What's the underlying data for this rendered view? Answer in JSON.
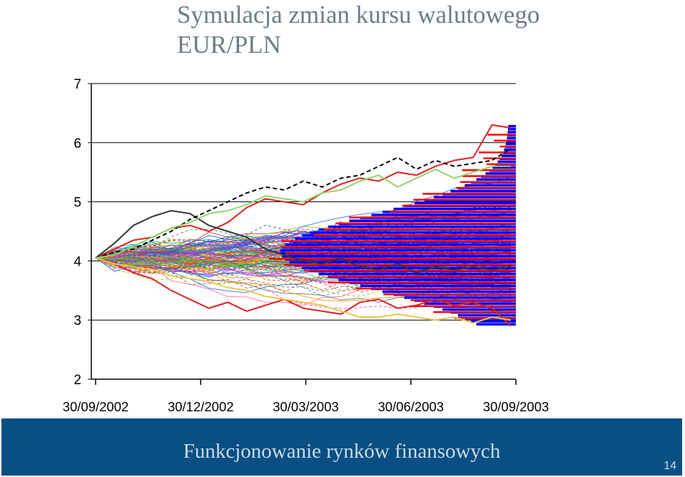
{
  "title_line1": "Symulacja zmian kursu walutowego",
  "title_line2": "EUR/PLN",
  "footer": {
    "text": "Funkcjonowanie rynków finansowych",
    "page": "14"
  },
  "colors": {
    "background": "#ffffff",
    "footer": "#0a4f83",
    "histogram_main": "#0000ff",
    "histogram_alt": "#ff0000",
    "title": "#6b7d86"
  },
  "chart_data": {
    "type": "line",
    "description_series": "Monte Carlo simulation paths of EUR/PLN exchange rate with distribution histogram at horizon",
    "xlabel": "",
    "ylabel": "",
    "x_ticks": [
      "30/09/2002",
      "30/12/2002",
      "30/03/2003",
      "30/06/2003",
      "30/09/2003"
    ],
    "y_ticks": [
      2,
      3,
      4,
      5,
      6,
      7
    ],
    "ylim": [
      2,
      7
    ],
    "start_value": 4.05,
    "grid": "horizontal",
    "legend": "none",
    "highlighted_paths": [
      {
        "color": "#dd2222",
        "values": [
          4.05,
          4.2,
          4.35,
          4.4,
          4.55,
          4.6,
          4.5,
          4.65,
          4.9,
          5.05,
          5.0,
          4.95,
          5.15,
          5.3,
          5.4,
          5.35,
          5.5,
          5.45,
          5.6,
          5.7,
          5.75,
          6.3,
          6.25
        ]
      },
      {
        "color": "#dd2222",
        "values": [
          4.05,
          3.95,
          3.8,
          3.7,
          3.5,
          3.35,
          3.2,
          3.3,
          3.15,
          3.25,
          3.35,
          3.2,
          3.15,
          3.1,
          3.3,
          3.35,
          3.2,
          3.25,
          3.35,
          3.25,
          3.3,
          3.2,
          2.9
        ]
      },
      {
        "color": "#333333",
        "values": [
          4.05,
          4.3,
          4.6,
          4.75,
          4.85,
          4.8,
          4.6,
          4.5,
          4.4,
          4.2,
          4.1,
          4.0,
          3.95,
          4.05,
          3.9,
          3.85,
          3.95,
          3.8,
          3.9,
          3.85,
          3.9,
          3.85,
          3.9
        ]
      },
      {
        "color": "#000000",
        "dashed": true,
        "values": [
          4.05,
          4.15,
          4.2,
          4.35,
          4.5,
          4.7,
          4.85,
          5.0,
          5.15,
          5.25,
          5.2,
          5.35,
          5.25,
          5.4,
          5.45,
          5.6,
          5.75,
          5.55,
          5.7,
          5.6,
          5.65,
          5.7,
          5.9
        ]
      },
      {
        "color": "#e6c84b",
        "values": [
          4.05,
          3.95,
          3.9,
          3.85,
          3.75,
          3.7,
          3.65,
          3.55,
          3.5,
          3.4,
          3.35,
          3.3,
          3.25,
          3.15,
          3.05,
          3.05,
          3.1,
          3.05,
          3.0,
          3.05,
          2.95,
          3.05,
          3.0
        ]
      },
      {
        "color": "#8fd46a",
        "values": [
          4.05,
          4.1,
          4.25,
          4.4,
          4.55,
          4.65,
          4.8,
          4.85,
          4.95,
          5.1,
          5.05,
          5.0,
          5.15,
          5.2,
          5.35,
          5.45,
          5.25,
          5.4,
          5.55,
          5.4,
          5.5,
          5.6,
          5.6
        ]
      }
    ]
  }
}
